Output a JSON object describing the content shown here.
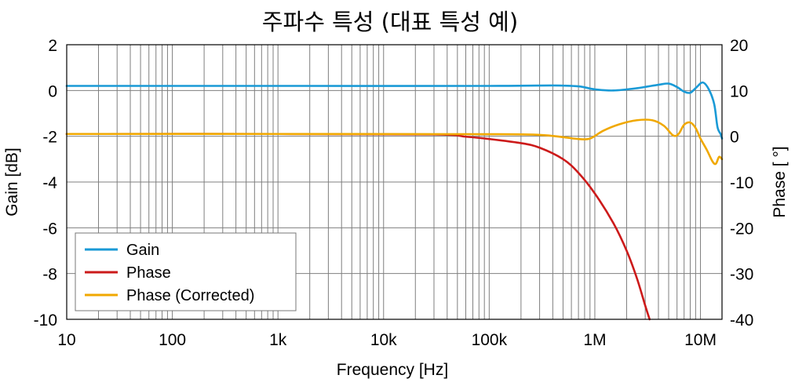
{
  "chart_data": {
    "type": "line",
    "title": "주파수 특성 (대표 특성 예)",
    "xlabel": "Frequency [Hz]",
    "ylabel_left": "Gain [dB]",
    "ylabel_right": "Phase [ °]",
    "x_scale": "log",
    "xlim": [
      10,
      16000000
    ],
    "ylim_left": [
      -10,
      2
    ],
    "ylim_right": [
      -40,
      20
    ],
    "grid": true,
    "legend_position": "bottom-left",
    "x_ticks": [
      {
        "value": 10,
        "label": "10"
      },
      {
        "value": 100,
        "label": "100"
      },
      {
        "value": 1000,
        "label": "1k"
      },
      {
        "value": 10000,
        "label": "10k"
      },
      {
        "value": 100000,
        "label": "100k"
      },
      {
        "value": 1000000,
        "label": "1M"
      },
      {
        "value": 10000000,
        "label": "10M"
      }
    ],
    "y_ticks_left": [
      {
        "value": 2,
        "label": "2"
      },
      {
        "value": 0,
        "label": "0"
      },
      {
        "value": -2,
        "label": "-2"
      },
      {
        "value": -4,
        "label": "-4"
      },
      {
        "value": -6,
        "label": "-6"
      },
      {
        "value": -8,
        "label": "-8"
      },
      {
        "value": -10,
        "label": "-10"
      }
    ],
    "y_ticks_right": [
      {
        "value": 20,
        "label": "20"
      },
      {
        "value": 10,
        "label": "10"
      },
      {
        "value": 0,
        "label": "0"
      },
      {
        "value": -10,
        "label": "-10"
      },
      {
        "value": -20,
        "label": "-20"
      },
      {
        "value": -30,
        "label": "-30"
      },
      {
        "value": -40,
        "label": "-40"
      }
    ],
    "series": [
      {
        "name": "Gain",
        "axis": "left",
        "color": "#1a9ad6",
        "x": [
          10,
          1000,
          100000,
          400000,
          700000,
          1000000,
          1500000,
          2500000,
          4000000,
          5000000,
          6000000,
          7000000,
          8000000,
          9000000,
          10500000,
          12000000,
          13500000,
          14500000,
          15500000,
          16000000
        ],
        "y": [
          0.2,
          0.2,
          0.2,
          0.22,
          0.18,
          0.05,
          0.0,
          0.1,
          0.25,
          0.3,
          0.15,
          -0.05,
          -0.1,
          0.1,
          0.35,
          0.05,
          -0.6,
          -1.6,
          -1.9,
          -2.1
        ]
      },
      {
        "name": "Phase",
        "axis": "right",
        "color": "#cc1a1a",
        "x": [
          10,
          1000,
          30000,
          60000,
          100000,
          200000,
          300000,
          500000,
          700000,
          1000000,
          1500000,
          2000000,
          2500000,
          3000000,
          3300000
        ],
        "y": [
          0.5,
          0.5,
          0.4,
          -0.1,
          -0.6,
          -1.5,
          -2.5,
          -5,
          -8,
          -12.5,
          -19,
          -25,
          -31,
          -37,
          -40
        ]
      },
      {
        "name": "Phase (Corrected)",
        "axis": "right",
        "color": "#f0a800",
        "x": [
          10,
          1000,
          100000,
          300000,
          500000,
          700000,
          900000,
          1200000,
          1700000,
          2500000,
          3500000,
          4500000,
          5500000,
          6200000,
          7000000,
          8000000,
          9000000,
          10000000,
          11500000,
          13000000,
          14000000,
          15000000,
          16000000
        ],
        "y": [
          0.5,
          0.5,
          0.45,
          0.3,
          -0.2,
          -0.6,
          -0.5,
          1.2,
          2.6,
          3.5,
          3.5,
          2.3,
          0.2,
          0.5,
          2.5,
          3.0,
          1.8,
          -0.5,
          -3.0,
          -5.5,
          -6.0,
          -4.5,
          -5.0
        ]
      }
    ]
  }
}
